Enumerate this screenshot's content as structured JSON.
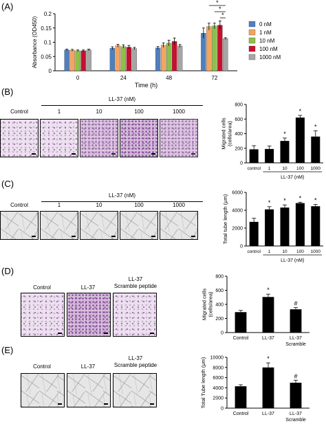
{
  "panels": {
    "A": "(A)",
    "B": "(B)",
    "C": "(C)",
    "D": "(D)",
    "E": "(E)"
  },
  "micrographs": {
    "B": {
      "labels": [
        "Control",
        "1",
        "10",
        "100",
        "1000"
      ],
      "header": "LL-37 (nM)"
    },
    "C": {
      "labels": [
        "Control",
        "1",
        "10",
        "100",
        "1000"
      ],
      "header": "LL-37 (nM)"
    },
    "D": {
      "labels": [
        "Control",
        "LL-37",
        "LL-37\nScramble peptide"
      ]
    },
    "E": {
      "labels": [
        "Control",
        "LL-37",
        "LL-37\nScramble peptide"
      ]
    }
  },
  "colors": {
    "0 nM": "#4f7fbf",
    "1 nM": "#f4a460",
    "10 nM": "#8dc04a",
    "100 nM": "#c8102e",
    "1000 nM": "#a6a6a6",
    "bar": "#000000"
  },
  "chart_data": [
    {
      "id": "A",
      "type": "bar",
      "title": "",
      "xlabel": "Time (h)",
      "ylabel": "Absorbance (OD450)",
      "categories": [
        "0",
        "24",
        "48",
        "72"
      ],
      "ylim": [
        0,
        0.2
      ],
      "yticks": [
        "0",
        "0.05",
        "0.1",
        "0.15",
        "0.2"
      ],
      "legend_position": "right",
      "series": [
        {
          "name": "0 nM",
          "values": [
            0.073,
            0.079,
            0.08,
            0.132
          ],
          "errors": [
            0.003,
            0.005,
            0.005,
            0.018
          ]
        },
        {
          "name": "1 nM",
          "values": [
            0.072,
            0.088,
            0.09,
            0.155
          ],
          "errors": [
            0.003,
            0.005,
            0.008,
            0.012
          ]
        },
        {
          "name": "10 nM",
          "values": [
            0.07,
            0.085,
            0.097,
            0.157
          ],
          "errors": [
            0.003,
            0.006,
            0.01,
            0.01
          ]
        },
        {
          "name": "100 nM",
          "values": [
            0.07,
            0.083,
            0.103,
            0.16
          ],
          "errors": [
            0.003,
            0.006,
            0.012,
            0.015
          ]
        },
        {
          "name": "1000 nM",
          "values": [
            0.073,
            0.078,
            0.087,
            0.113
          ],
          "errors": [
            0.003,
            0.004,
            0.005,
            0.003
          ]
        }
      ],
      "annotations": [
        "*",
        "*",
        "*"
      ]
    },
    {
      "id": "B",
      "type": "bar",
      "title": "",
      "xlabel": "LL-37 (nM)",
      "ylabel": "Migrated cells\n(cells/area)",
      "categories": [
        "control",
        "1",
        "10",
        "100",
        "1000"
      ],
      "values": [
        185,
        190,
        300,
        620,
        360
      ],
      "errors": [
        50,
        40,
        40,
        30,
        80
      ],
      "significance": [
        "",
        "",
        "*",
        "*",
        "*"
      ],
      "ylim": [
        0,
        800
      ],
      "yticks": [
        "0",
        "200",
        "400",
        "600",
        "800"
      ]
    },
    {
      "id": "C",
      "type": "bar",
      "title": "",
      "xlabel": "LL-37 (nM)",
      "ylabel": "Total tube length (μm)",
      "categories": [
        "control",
        "1",
        "10",
        "100",
        "1000"
      ],
      "values": [
        2700,
        4100,
        4300,
        4800,
        4450
      ],
      "errors": [
        400,
        300,
        300,
        100,
        200
      ],
      "significance": [
        "",
        "*",
        "*",
        "*",
        "*"
      ],
      "ylim": [
        0,
        6000
      ],
      "yticks": [
        "0",
        "2000",
        "4000",
        "6000"
      ]
    },
    {
      "id": "D",
      "type": "bar",
      "title": "",
      "xlabel": "",
      "ylabel": "Migrated cells\n(cells/area)",
      "categories": [
        "Control",
        "LL-37",
        "LL-37\nScramble"
      ],
      "values": [
        290,
        505,
        330
      ],
      "errors": [
        25,
        40,
        25
      ],
      "significance": [
        "",
        "*",
        "#"
      ],
      "ylim": [
        0,
        800
      ],
      "yticks": [
        "0",
        "200",
        "400",
        "600",
        "800"
      ]
    },
    {
      "id": "E",
      "type": "bar",
      "title": "",
      "xlabel": "",
      "ylabel": "Total Tube length (μm)",
      "categories": [
        "Control",
        "LL-37",
        "LL-37\nScramble"
      ],
      "values": [
        4300,
        8000,
        5000
      ],
      "errors": [
        300,
        900,
        500
      ],
      "significance": [
        "",
        "*",
        "#"
      ],
      "ylim": [
        0,
        10000
      ],
      "yticks": [
        "0",
        "2000",
        "4000",
        "6000",
        "8000",
        "10000"
      ]
    }
  ]
}
